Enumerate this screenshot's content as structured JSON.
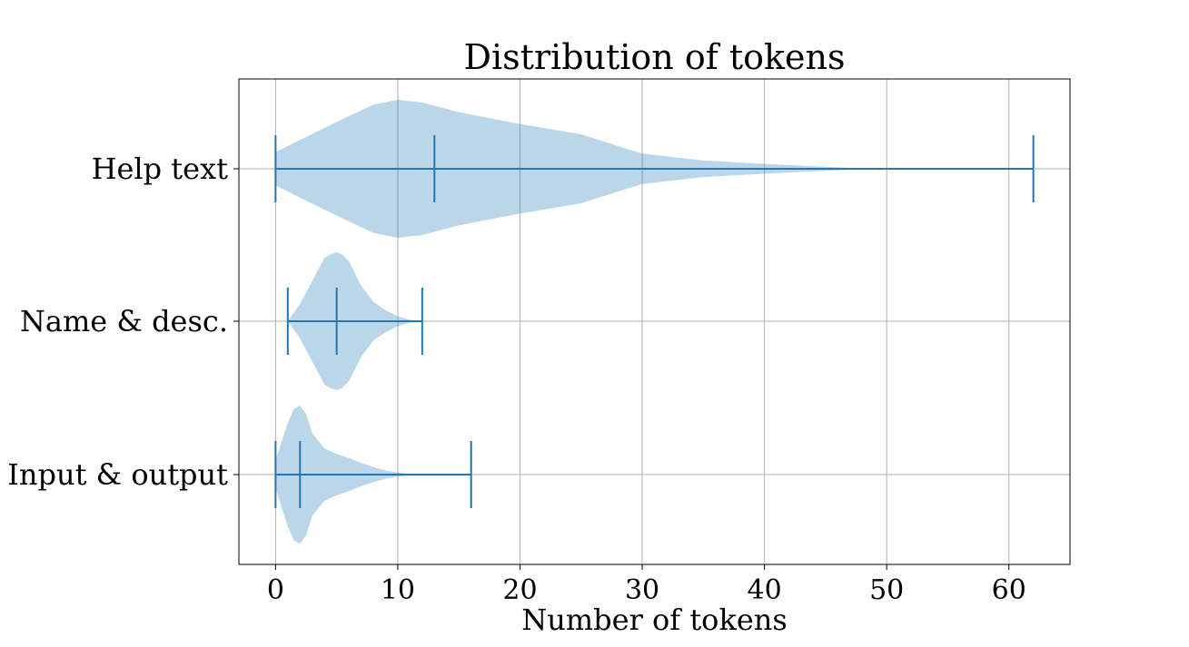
{
  "chart_data": {
    "type": "violin",
    "orientation": "horizontal",
    "title": "Distribution of tokens",
    "xlabel": "Number of tokens",
    "ylabel": "",
    "xlim": [
      -3,
      65
    ],
    "xticks": [
      0,
      10,
      20,
      30,
      40,
      50,
      60
    ],
    "grid": true,
    "colors": {
      "body": "#1f77b4",
      "body_alpha": 0.3,
      "lines": "#1f77b4",
      "grid": "#b0b0b0"
    },
    "categories": [
      "Help text",
      "Name & desc.",
      "Input & output"
    ],
    "series": [
      {
        "label": "Help text",
        "min": 0,
        "median": 13,
        "max": 62,
        "density": [
          [
            0,
            0.24
          ],
          [
            2,
            0.42
          ],
          [
            5,
            0.68
          ],
          [
            8,
            0.93
          ],
          [
            10,
            1.0
          ],
          [
            12,
            0.96
          ],
          [
            15,
            0.82
          ],
          [
            20,
            0.65
          ],
          [
            25,
            0.5
          ],
          [
            28,
            0.33
          ],
          [
            30,
            0.22
          ],
          [
            35,
            0.12
          ],
          [
            40,
            0.07
          ],
          [
            45,
            0.03
          ],
          [
            48,
            0.005
          ],
          [
            50,
            0.0
          ],
          [
            62,
            0.0
          ]
        ]
      },
      {
        "label": "Name & desc.",
        "min": 1,
        "median": 5,
        "max": 12,
        "density": [
          [
            1,
            0.0
          ],
          [
            2,
            0.25
          ],
          [
            3,
            0.58
          ],
          [
            4,
            0.92
          ],
          [
            4.5,
            0.97
          ],
          [
            5,
            1.0
          ],
          [
            5.5,
            0.96
          ],
          [
            6,
            0.87
          ],
          [
            7,
            0.52
          ],
          [
            8,
            0.28
          ],
          [
            9,
            0.16
          ],
          [
            10,
            0.07
          ],
          [
            11,
            0.02
          ],
          [
            12,
            0.0
          ]
        ]
      },
      {
        "label": "Input & output",
        "min": 0,
        "median": 2,
        "max": 16,
        "density": [
          [
            0,
            0.2
          ],
          [
            0.5,
            0.48
          ],
          [
            1,
            0.75
          ],
          [
            1.5,
            0.95
          ],
          [
            2,
            1.0
          ],
          [
            2.5,
            0.88
          ],
          [
            3,
            0.6
          ],
          [
            4,
            0.38
          ],
          [
            5,
            0.3
          ],
          [
            6,
            0.24
          ],
          [
            7,
            0.17
          ],
          [
            8,
            0.11
          ],
          [
            9,
            0.06
          ],
          [
            10,
            0.03
          ],
          [
            11,
            0.01
          ],
          [
            12,
            0.0
          ],
          [
            16,
            0.0
          ]
        ]
      }
    ]
  }
}
